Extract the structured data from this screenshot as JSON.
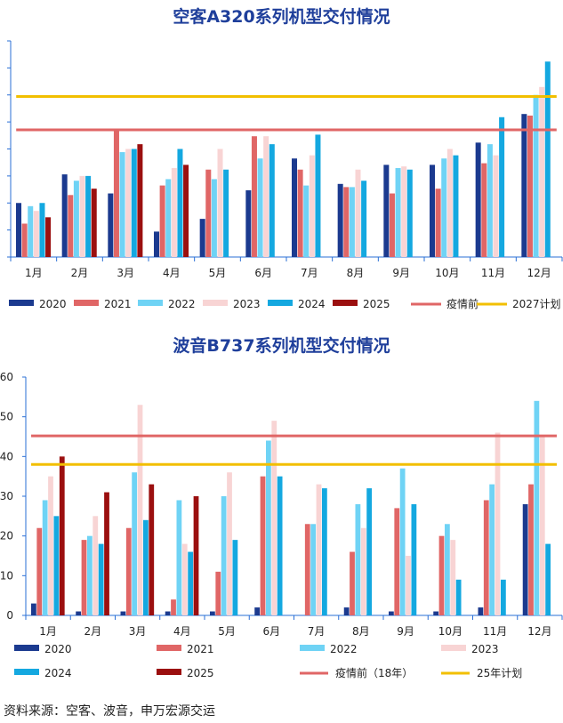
{
  "colors": {
    "s2020": "#1b3a8f",
    "s2021": "#e06666",
    "s2022": "#6fd3f5",
    "s2023": "#f8d4d4",
    "s2024": "#14a8e0",
    "s2025": "#9b0f0f",
    "pre_covid": "#e06666",
    "plan": "#f2bf00",
    "axis": "#2a6fd6"
  },
  "chart_data": [
    {
      "type": "bar",
      "title": "空客A320系列机型交付情况",
      "categories": [
        "1月",
        "2月",
        "3月",
        "4月",
        "5月",
        "6月",
        "7月",
        "8月",
        "9月",
        "10月",
        "11月",
        "12月"
      ],
      "ylim": [
        0,
        68
      ],
      "grid": false,
      "show_yticklabels": false,
      "series": [
        {
          "name": "2020",
          "color_key": "s2020",
          "values": [
            17,
            26,
            20,
            8,
            12,
            21,
            31,
            23,
            29,
            29,
            36,
            45
          ]
        },
        {
          "name": "2021",
          "color_key": "s2021",
          "values": [
            10.5,
            19.5,
            40,
            22.5,
            27.5,
            38,
            27.5,
            22,
            20,
            21.5,
            29.5,
            44.5
          ]
        },
        {
          "name": "2022",
          "color_key": "s2022",
          "values": [
            16,
            24,
            33,
            24.5,
            24.5,
            31,
            22.5,
            22,
            28,
            31,
            35.5,
            51
          ]
        },
        {
          "name": "2023",
          "color_key": "s2023",
          "values": [
            14.5,
            25.5,
            34,
            28,
            34,
            38,
            32,
            27.5,
            28.5,
            34,
            32,
            53.5
          ]
        },
        {
          "name": "2024",
          "color_key": "s2024",
          "values": [
            17,
            25.5,
            34,
            34,
            27.5,
            35.5,
            38.5,
            24,
            27.5,
            32,
            44,
            61.5
          ]
        },
        {
          "name": "2025",
          "color_key": "s2025",
          "values": [
            12.5,
            21.5,
            35.5,
            29,
            null,
            null,
            null,
            null,
            null,
            null,
            null,
            null
          ]
        }
      ],
      "reference_lines": [
        {
          "name": "疫情前",
          "color_key": "pre_covid",
          "value": 40
        },
        {
          "name": "2027计划",
          "color_key": "plan",
          "value": 50.5
        }
      ]
    },
    {
      "type": "bar",
      "title": "波音B737系列机型交付情况",
      "categories": [
        "1月",
        "2月",
        "3月",
        "4月",
        "5月",
        "6月",
        "7月",
        "8月",
        "9月",
        "10月",
        "11月",
        "12月"
      ],
      "ylim": [
        0,
        60
      ],
      "yticks": [
        0,
        10,
        20,
        30,
        40,
        50,
        60
      ],
      "grid": false,
      "show_yticklabels": true,
      "series": [
        {
          "name": "2020",
          "color_key": "s2020",
          "values": [
            3,
            1,
            1,
            1,
            1,
            2,
            0,
            2,
            1,
            1,
            2,
            28
          ]
        },
        {
          "name": "2021",
          "color_key": "s2021",
          "values": [
            22,
            19,
            22,
            4,
            11,
            35,
            23,
            16,
            27,
            20,
            29,
            33
          ]
        },
        {
          "name": "2022",
          "color_key": "s2022",
          "values": [
            29,
            20,
            36,
            29,
            30,
            44,
            23,
            28,
            37,
            23,
            33,
            54
          ]
        },
        {
          "name": "2023",
          "color_key": "s2023",
          "values": [
            35,
            25,
            53,
            18,
            36,
            49,
            33,
            22,
            15,
            19,
            46,
            45
          ]
        },
        {
          "name": "2024",
          "color_key": "s2024",
          "values": [
            25,
            18,
            24,
            16,
            19,
            35,
            32,
            32,
            28,
            9,
            9,
            18
          ]
        },
        {
          "name": "2025",
          "color_key": "s2025",
          "values": [
            40,
            31,
            33,
            30,
            null,
            null,
            null,
            null,
            null,
            null,
            null,
            null
          ]
        }
      ],
      "reference_lines": [
        {
          "name": "疫情前（18年）",
          "color_key": "pre_covid",
          "value": 45.2
        },
        {
          "name": "25年计划",
          "color_key": "plan",
          "value": 38
        }
      ]
    }
  ],
  "source_note": "资料来源：空客、波音，申万宏源交运"
}
